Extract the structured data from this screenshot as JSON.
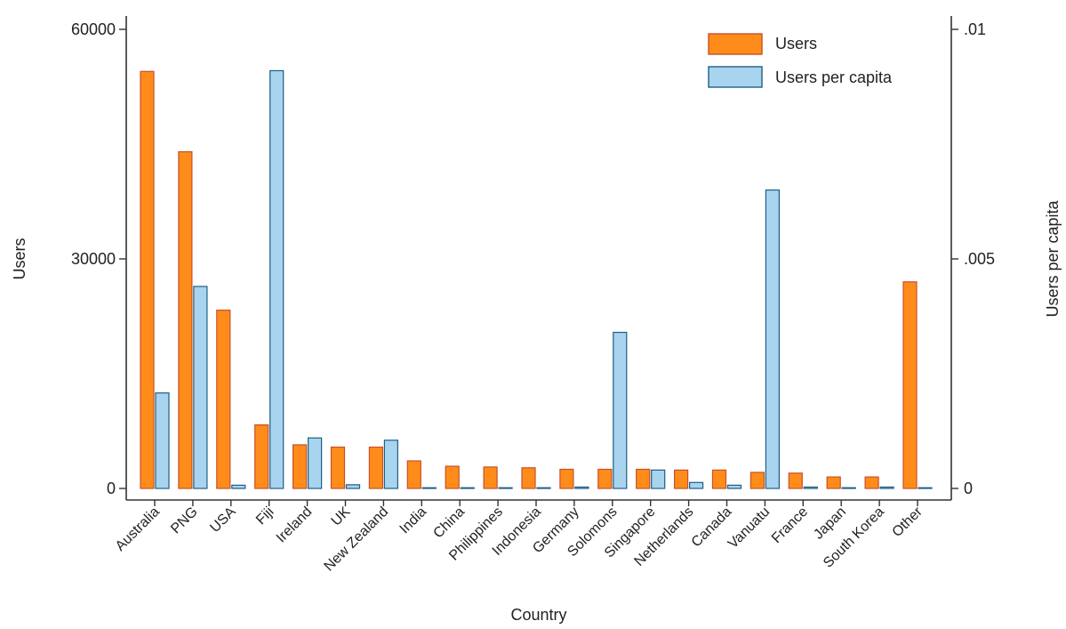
{
  "chart_data": {
    "type": "bar",
    "xlabel": "Country",
    "ylabel_left": "Users",
    "ylabel_right": "Users per capita",
    "yleft_ticks": [
      "0",
      "30000",
      "60000"
    ],
    "yleft_tick_values": [
      0,
      30000,
      60000
    ],
    "yleft_lim": [
      0,
      60000
    ],
    "yright_ticks": [
      "0",
      ".005",
      ".01"
    ],
    "yright_tick_values": [
      0,
      0.005,
      0.01
    ],
    "yright_lim": [
      0,
      0.01
    ],
    "grid": false,
    "legend_position": "top-right",
    "categories": [
      "Australia",
      "PNG",
      "USA",
      "Fiji",
      "Ireland",
      "UK",
      "New Zealand",
      "India",
      "China",
      "Philippines",
      "Indonesia",
      "Germany",
      "Solomons",
      "Singapore",
      "Netherlands",
      "Canada",
      "Vanuatu",
      "France",
      "Japan",
      "South Korea",
      "Other"
    ],
    "series": [
      {
        "name": "Users",
        "axis": "left",
        "color": "#ff8c1a",
        "border": "#c8502a",
        "values": [
          54500,
          44000,
          23300,
          8300,
          5700,
          5400,
          5400,
          3600,
          2900,
          2800,
          2700,
          2500,
          2500,
          2500,
          2400,
          2400,
          2100,
          2000,
          1500,
          1500,
          27000
        ]
      },
      {
        "name": "Users per capita",
        "axis": "right",
        "color": "#a8d4f0",
        "border": "#1e5f84",
        "values": [
          0.00208,
          0.0044,
          7e-05,
          0.0091,
          0.0011,
          8e-05,
          0.00105,
          0.0,
          0.0,
          1e-05,
          1e-05,
          3e-05,
          0.0034,
          0.0004,
          0.00013,
          7e-05,
          0.0065,
          3e-05,
          1e-05,
          3e-05,
          0.0
        ]
      }
    ]
  }
}
